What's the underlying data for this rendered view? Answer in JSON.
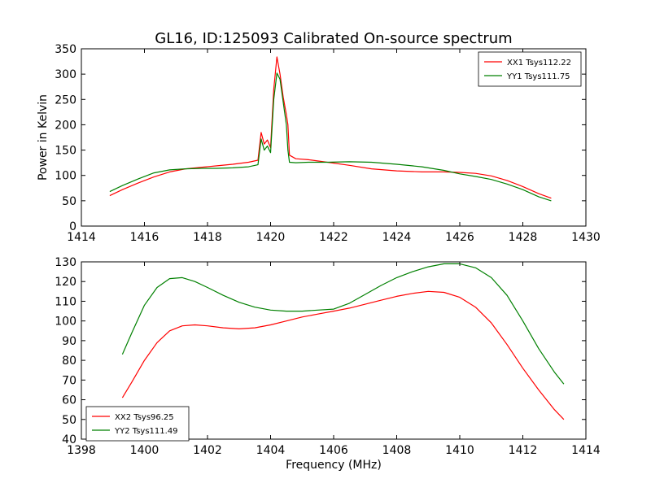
{
  "title": "GL16, ID:125093 Calibrated On-source spectrum",
  "chart_data": [
    {
      "type": "line",
      "ylabel": "Power in Kelvin",
      "xlabel": "",
      "xlim": [
        1414,
        1430
      ],
      "ylim": [
        0,
        350
      ],
      "xticks": [
        1414,
        1416,
        1418,
        1420,
        1422,
        1424,
        1426,
        1428,
        1430
      ],
      "yticks": [
        0,
        50,
        100,
        150,
        200,
        250,
        300,
        350
      ],
      "grid": false,
      "legend_position": "top-right",
      "series": [
        {
          "name": "XX1 Tsys112.22",
          "color": "#ff0000",
          "x": [
            1414.9,
            1415.3,
            1415.8,
            1416.3,
            1416.8,
            1417.3,
            1417.8,
            1418.3,
            1418.8,
            1419.3,
            1419.6,
            1419.7,
            1419.8,
            1419.9,
            1420.0,
            1420.1,
            1420.2,
            1420.3,
            1420.4,
            1420.5,
            1420.55,
            1420.6,
            1420.8,
            1421.2,
            1421.8,
            1422.5,
            1423.2,
            1424.0,
            1424.8,
            1425.5,
            1426.0,
            1426.5,
            1427.0,
            1427.5,
            1428.0,
            1428.5,
            1428.9
          ],
          "y": [
            60,
            72,
            85,
            97,
            107,
            113,
            116,
            119,
            122,
            126,
            130,
            185,
            162,
            170,
            155,
            270,
            334,
            300,
            255,
            220,
            200,
            140,
            133,
            131,
            126,
            120,
            113,
            109,
            107,
            107,
            106,
            104,
            99,
            90,
            78,
            64,
            55
          ]
        },
        {
          "name": "YY1 Tsys111.75",
          "color": "#008000",
          "x": [
            1414.9,
            1415.3,
            1415.8,
            1416.3,
            1416.8,
            1417.3,
            1417.8,
            1418.3,
            1418.8,
            1419.3,
            1419.6,
            1419.7,
            1419.8,
            1419.9,
            1420.0,
            1420.1,
            1420.2,
            1420.3,
            1420.4,
            1420.5,
            1420.55,
            1420.6,
            1420.8,
            1421.2,
            1421.8,
            1422.5,
            1423.2,
            1424.0,
            1424.8,
            1425.5,
            1426.0,
            1426.5,
            1427.0,
            1427.5,
            1428.0,
            1428.5,
            1428.9
          ],
          "y": [
            68,
            80,
            93,
            105,
            111,
            113,
            114,
            114,
            115,
            117,
            121,
            172,
            150,
            158,
            145,
            250,
            302,
            290,
            245,
            200,
            150,
            126,
            125,
            126,
            126,
            127,
            126,
            122,
            117,
            110,
            103,
            98,
            92,
            83,
            72,
            58,
            50
          ]
        }
      ]
    },
    {
      "type": "line",
      "ylabel": "",
      "xlabel": "Frequency (MHz)",
      "xlim": [
        1398,
        1414
      ],
      "ylim": [
        40,
        130
      ],
      "xticks": [
        1398,
        1400,
        1402,
        1404,
        1406,
        1408,
        1410,
        1412,
        1414
      ],
      "yticks": [
        40,
        50,
        60,
        70,
        80,
        90,
        100,
        110,
        120,
        130
      ],
      "grid": false,
      "legend_position": "bottom-left",
      "series": [
        {
          "name": "XX2 Tsys96.25",
          "color": "#ff0000",
          "x": [
            1399.3,
            1399.6,
            1400.0,
            1400.4,
            1400.8,
            1401.2,
            1401.6,
            1402.0,
            1402.5,
            1403.0,
            1403.5,
            1404.0,
            1404.5,
            1405.0,
            1405.5,
            1406.0,
            1406.5,
            1407.0,
            1407.5,
            1408.0,
            1408.5,
            1409.0,
            1409.5,
            1410.0,
            1410.5,
            1411.0,
            1411.5,
            1412.0,
            1412.5,
            1413.0,
            1413.3
          ],
          "y": [
            61,
            69,
            80,
            89,
            95,
            97.5,
            98,
            97.5,
            96.5,
            96,
            96.5,
            98,
            100,
            102,
            103.5,
            105,
            106.5,
            108.5,
            110.5,
            112.5,
            114,
            115,
            114.5,
            112,
            107,
            99,
            88,
            76,
            65,
            55,
            50
          ]
        },
        {
          "name": "YY2 Tsys111.49",
          "color": "#008000",
          "x": [
            1399.3,
            1399.6,
            1400.0,
            1400.4,
            1400.8,
            1401.2,
            1401.6,
            1402.0,
            1402.5,
            1403.0,
            1403.5,
            1404.0,
            1404.5,
            1405.0,
            1405.5,
            1406.0,
            1406.5,
            1407.0,
            1407.5,
            1408.0,
            1408.5,
            1409.0,
            1409.5,
            1410.0,
            1410.5,
            1411.0,
            1411.5,
            1412.0,
            1412.5,
            1413.0,
            1413.3
          ],
          "y": [
            83,
            94,
            108,
            117,
            121.5,
            122,
            120,
            117,
            113,
            109.5,
            107,
            105.5,
            105,
            105,
            105.5,
            106,
            109,
            113.5,
            118,
            122,
            125,
            127.5,
            129,
            129,
            127,
            122,
            113,
            100,
            86,
            74,
            68
          ]
        }
      ]
    }
  ]
}
